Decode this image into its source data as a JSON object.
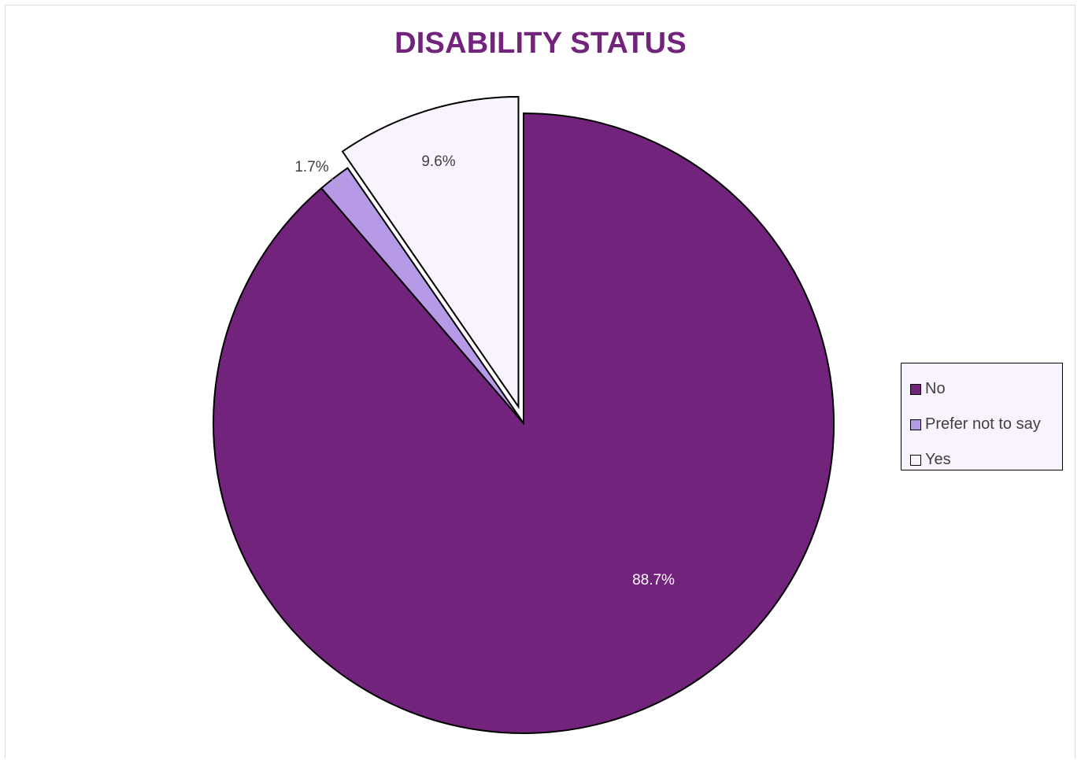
{
  "chart_data": {
    "type": "pie",
    "title": "DISABILITY STATUS",
    "categories": [
      "No",
      "Prefer not to say",
      "Yes"
    ],
    "values": [
      88.7,
      1.7,
      9.6
    ],
    "data_labels": [
      "88.7%",
      "1.7%",
      "9.6%"
    ],
    "colors": [
      "#72247c",
      "#b69ae8",
      "#f8f3fc"
    ],
    "label_colors": [
      "#ffffff",
      "#404040",
      "#404040"
    ],
    "exploded": [
      false,
      false,
      true
    ],
    "legend_position": "right",
    "start_angle": "12 o'clock"
  }
}
